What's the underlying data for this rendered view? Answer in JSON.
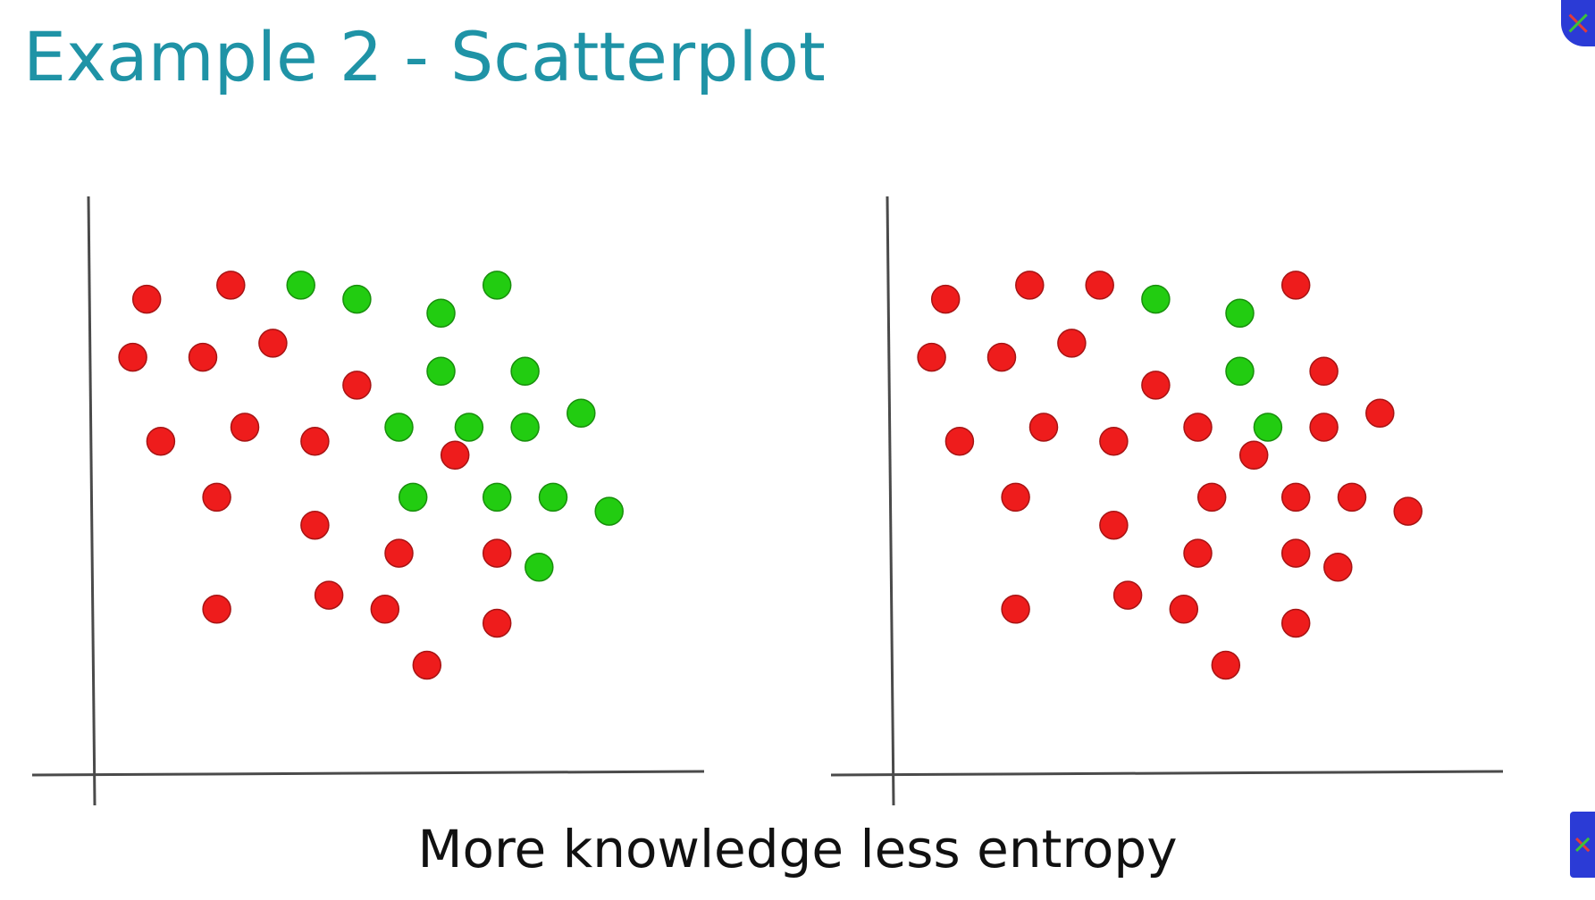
{
  "slide": {
    "title": "Example 2 - Scatterplot",
    "caption": "More knowledge less entropy",
    "colors": {
      "title": "#1f93a6",
      "caption": "#111111",
      "axis": "#4a4a4a",
      "red": "#ee1c1c",
      "green": "#22cc11"
    },
    "icons": [
      "corner-logo-icon",
      "corner-logo-icon"
    ]
  },
  "chart_data": [
    {
      "type": "scatter",
      "title": "",
      "xlabel": "",
      "ylabel": "",
      "xlim": [
        0,
        600
      ],
      "ylim": [
        0,
        560
      ],
      "grid": false,
      "legend": "none",
      "series": [
        {
          "color": "#ee1c1c",
          "points": [
            [
              52,
              474
            ],
            [
              136,
              488
            ],
            [
              38,
              416
            ],
            [
              108,
              416
            ],
            [
              178,
              430
            ],
            [
              262,
              388
            ],
            [
              66,
              332
            ],
            [
              150,
              346
            ],
            [
              220,
              332
            ],
            [
              360,
              318
            ],
            [
              122,
              276
            ],
            [
              220,
              248
            ],
            [
              304,
              220
            ],
            [
              402,
              220
            ],
            [
              122,
              164
            ],
            [
              234,
              178
            ],
            [
              290,
              164
            ],
            [
              402,
              150
            ],
            [
              332,
              108
            ]
          ]
        },
        {
          "color": "#22cc11",
          "points": [
            [
              206,
              488
            ],
            [
              262,
              474
            ],
            [
              402,
              488
            ],
            [
              346,
              460
            ],
            [
              346,
              402
            ],
            [
              430,
              402
            ],
            [
              304,
              346
            ],
            [
              374,
              346
            ],
            [
              430,
              346
            ],
            [
              486,
              360
            ],
            [
              318,
              276
            ],
            [
              402,
              276
            ],
            [
              458,
              276
            ],
            [
              514,
              262
            ],
            [
              444,
              206
            ]
          ]
        }
      ]
    },
    {
      "type": "scatter",
      "title": "",
      "xlabel": "",
      "ylabel": "",
      "xlim": [
        0,
        600
      ],
      "ylim": [
        0,
        560
      ],
      "grid": false,
      "legend": "none",
      "series": [
        {
          "color": "#ee1c1c",
          "points": [
            [
              52,
              474
            ],
            [
              136,
              488
            ],
            [
              206,
              488
            ],
            [
              402,
              488
            ],
            [
              38,
              416
            ],
            [
              108,
              416
            ],
            [
              178,
              430
            ],
            [
              262,
              388
            ],
            [
              430,
              402
            ],
            [
              66,
              332
            ],
            [
              150,
              346
            ],
            [
              220,
              332
            ],
            [
              304,
              346
            ],
            [
              430,
              346
            ],
            [
              486,
              360
            ],
            [
              360,
              318
            ],
            [
              122,
              276
            ],
            [
              220,
              248
            ],
            [
              318,
              276
            ],
            [
              402,
              276
            ],
            [
              458,
              276
            ],
            [
              514,
              262
            ],
            [
              304,
              220
            ],
            [
              402,
              220
            ],
            [
              444,
              206
            ],
            [
              122,
              164
            ],
            [
              234,
              178
            ],
            [
              290,
              164
            ],
            [
              402,
              150
            ],
            [
              332,
              108
            ]
          ]
        },
        {
          "color": "#22cc11",
          "points": [
            [
              262,
              474
            ],
            [
              346,
              460
            ],
            [
              346,
              402
            ],
            [
              374,
              346
            ]
          ]
        }
      ]
    }
  ]
}
